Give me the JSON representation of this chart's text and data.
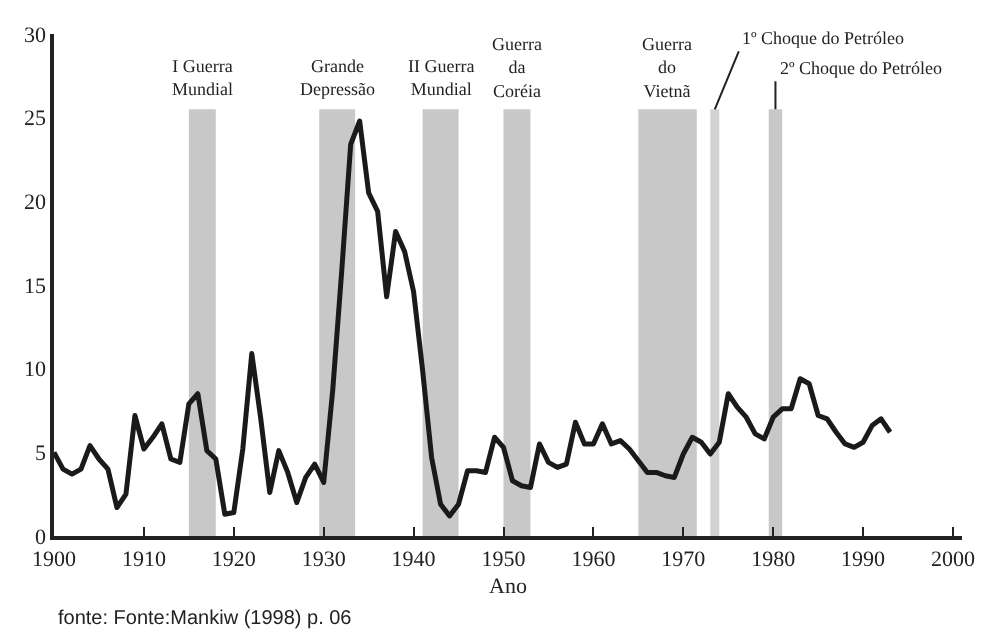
{
  "chart_data": {
    "type": "line",
    "xlabel": "Ano",
    "annotations": [
      "fonte: Fonte:Mankiw (1998) p. 06"
    ],
    "x": [
      1900,
      1901,
      1902,
      1903,
      1904,
      1905,
      1906,
      1907,
      1908,
      1909,
      1910,
      1911,
      1912,
      1913,
      1914,
      1915,
      1916,
      1917,
      1918,
      1919,
      1920,
      1921,
      1922,
      1923,
      1924,
      1925,
      1926,
      1927,
      1928,
      1929,
      1930,
      1931,
      1932,
      1933,
      1934,
      1935,
      1936,
      1937,
      1938,
      1939,
      1940,
      1941,
      1942,
      1943,
      1944,
      1945,
      1946,
      1947,
      1948,
      1949,
      1950,
      1951,
      1952,
      1953,
      1954,
      1955,
      1956,
      1957,
      1958,
      1959,
      1960,
      1961,
      1962,
      1963,
      1964,
      1965,
      1966,
      1967,
      1968,
      1969,
      1970,
      1971,
      1972,
      1973,
      1974,
      1975,
      1976,
      1977,
      1978,
      1979,
      1980,
      1981,
      1982,
      1983,
      1984,
      1985,
      1986,
      1987,
      1988,
      1989,
      1990,
      1991,
      1992,
      1993
    ],
    "series": [
      {
        "color": "#1a1a1a",
        "values": [
          5.0,
          4.0,
          3.7,
          4.0,
          5.4,
          4.6,
          4.0,
          1.7,
          2.5,
          7.2,
          5.2,
          5.9,
          6.7,
          4.6,
          4.4,
          7.9,
          8.5,
          5.1,
          4.6,
          1.3,
          1.4,
          5.2,
          10.9,
          7.0,
          2.6,
          5.1,
          3.8,
          2.0,
          3.5,
          4.3,
          3.2,
          8.7,
          15.8,
          23.4,
          24.8,
          20.5,
          19.4,
          14.3,
          18.2,
          17.0,
          14.6,
          9.9,
          4.7,
          1.9,
          1.2,
          1.9,
          3.9,
          3.9,
          3.8,
          5.9,
          5.3,
          3.3,
          3.0,
          2.9,
          5.5,
          4.4,
          4.1,
          4.3,
          6.8,
          5.5,
          5.5,
          6.7,
          5.5,
          5.7,
          5.2,
          4.5,
          3.8,
          3.8,
          3.6,
          3.5,
          4.9,
          5.9,
          5.6,
          4.9,
          5.6,
          8.5,
          7.7,
          7.1,
          6.1,
          5.8,
          7.1,
          7.6,
          7.6,
          9.4,
          9.1,
          7.2,
          7.0,
          6.2,
          5.5,
          5.3,
          5.6,
          6.6,
          7.0,
          6.2
        ]
      }
    ],
    "xlim": [
      1900,
      2001
    ],
    "xticks": [
      1900,
      1910,
      1920,
      1930,
      1940,
      1950,
      1960,
      1970,
      1980,
      1990,
      2000
    ],
    "ylim": [
      0,
      30
    ],
    "yticks": [
      0,
      5,
      10,
      15,
      20,
      25,
      30
    ],
    "grid": false,
    "legend": false,
    "bands": [
      {
        "axis": "x",
        "from": 1915,
        "to": 1918,
        "label": "I Guerra\nMundial",
        "color": "#c8c8c8"
      },
      {
        "axis": "x",
        "from": 1929.5,
        "to": 1933.5,
        "label": "Grande\nDepressão",
        "color": "#c8c8c8"
      },
      {
        "axis": "x",
        "from": 1941,
        "to": 1945,
        "label": "II Guerra\nMundial",
        "color": "#c8c8c8"
      },
      {
        "axis": "x",
        "from": 1950,
        "to": 1953,
        "label": "Guerra\nda\nCoréia",
        "color": "#c8c8c8"
      },
      {
        "axis": "x",
        "from": 1965,
        "to": 1971.5,
        "label": "Guerra\ndo\nVietnã",
        "color": "#c8c8c8"
      },
      {
        "axis": "x",
        "from": 1973,
        "to": 1974,
        "label": "1º Choque do Petróleo",
        "color": "#d2d2d2"
      },
      {
        "axis": "x",
        "from": 1979.5,
        "to": 1981,
        "label": "2º Choque do Petróleo",
        "color": "#c8c8c8"
      }
    ]
  }
}
